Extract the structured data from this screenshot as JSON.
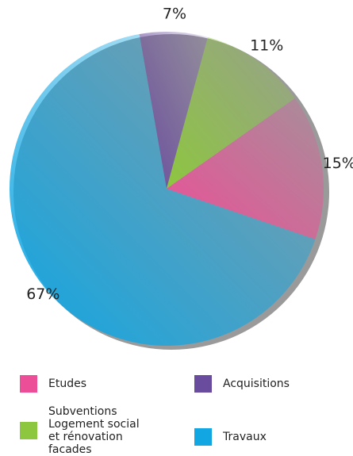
{
  "chart_data": {
    "type": "pie",
    "categories": [
      "Acquisitions",
      "Subventions Logement social et rénovation facades",
      "Etudes",
      "Travaux"
    ],
    "values": [
      7,
      11,
      15,
      67
    ],
    "value_labels": [
      "7%",
      "11%",
      "15%",
      "67%"
    ],
    "colors": [
      "#6a4c9e",
      "#8dc63f",
      "#ec4f97",
      "#12a6e2"
    ],
    "legend": "bottom"
  }
}
